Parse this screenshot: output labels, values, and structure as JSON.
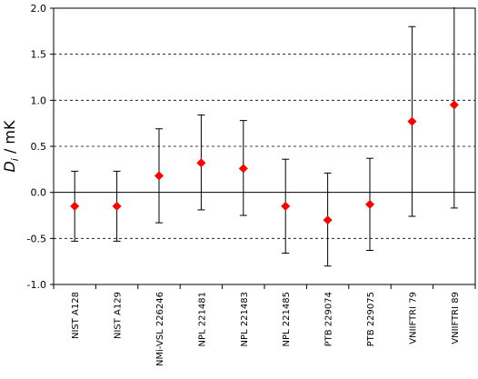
{
  "chart_data": {
    "type": "scatter",
    "ylabel_symbol": "D",
    "ylabel_subscript": "i",
    "ylabel_unit": " / mK",
    "xlabel": "",
    "ylim": [
      -1.0,
      2.0
    ],
    "yticks": [
      -1.0,
      -0.5,
      0.0,
      0.5,
      1.0,
      1.5,
      2.0
    ],
    "ytick_labels": [
      "-1.0",
      "-0.5",
      "0.0",
      "0.5",
      "1.0",
      "1.5",
      "2.0"
    ],
    "dashed_grid_at": [
      -0.5,
      0.5,
      1.0,
      1.5
    ],
    "zero_line": 0.0,
    "marker": "diamond",
    "marker_color": "#ff0000",
    "errorbar_color": "#000000",
    "categories": [
      "NIST A128",
      "NIST A129",
      "NMi-VSL 226246",
      "NPL 221481",
      "NPL 221483",
      "NPL 221485",
      "PTB 229074",
      "PTB 229075",
      "VNIIFTRI 79",
      "VNIIFTRI 89"
    ],
    "values": [
      -0.15,
      -0.15,
      0.18,
      0.32,
      0.26,
      -0.15,
      -0.3,
      -0.13,
      0.77,
      0.95
    ],
    "error_upper": [
      0.23,
      0.23,
      0.69,
      0.84,
      0.78,
      0.36,
      0.21,
      0.37,
      1.8,
      2.05
    ],
    "error_lower": [
      -0.53,
      -0.53,
      -0.33,
      -0.19,
      -0.25,
      -0.66,
      -0.8,
      -0.63,
      -0.26,
      -0.17
    ]
  }
}
